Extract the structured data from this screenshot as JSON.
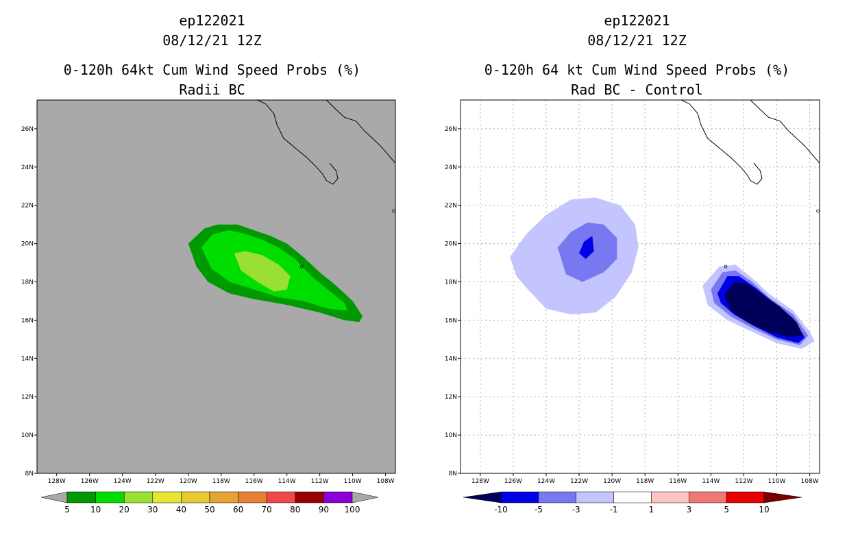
{
  "chart_data": [
    {
      "type": "contour-map",
      "storm_id": "ep122021",
      "datetime": "08/12/21 12Z",
      "title": "0-120h 64kt Cum Wind Speed Probs (%)",
      "subtitle": "Radii BC",
      "lon_ticks": [
        "128W",
        "126W",
        "124W",
        "122W",
        "120W",
        "118W",
        "116W",
        "114W",
        "112W",
        "110W",
        "108W"
      ],
      "lat_ticks": [
        "8N",
        "10N",
        "12N",
        "14N",
        "16N",
        "18N",
        "20N",
        "22N",
        "24N",
        "26N"
      ],
      "lon_range": [
        -129.2,
        -107.4
      ],
      "lat_range": [
        8,
        27.5
      ],
      "background": "#a9a9a9",
      "contours": [
        {
          "level": "5-10",
          "color": "#009900",
          "polygon": [
            [
              -120,
              20.0
            ],
            [
              -119,
              20.8
            ],
            [
              -118.2,
              21.0
            ],
            [
              -117,
              21.0
            ],
            [
              -116,
              20.7
            ],
            [
              -115,
              20.4
            ],
            [
              -114,
              20.0
            ],
            [
              -113,
              19.3
            ],
            [
              -112,
              18.5
            ],
            [
              -111,
              17.8
            ],
            [
              -110,
              17.0
            ],
            [
              -109.4,
              16.2
            ],
            [
              -109.6,
              15.9
            ],
            [
              -110.5,
              16.0
            ],
            [
              -112,
              16.4
            ],
            [
              -114,
              16.8
            ],
            [
              -116,
              17.1
            ],
            [
              -117.5,
              17.4
            ],
            [
              -118.8,
              18.0
            ],
            [
              -119.5,
              18.8
            ]
          ]
        },
        {
          "level": "10-20",
          "color": "#00dd00",
          "polygon": [
            [
              -119.2,
              19.8
            ],
            [
              -118.5,
              20.5
            ],
            [
              -117.5,
              20.7
            ],
            [
              -116.5,
              20.5
            ],
            [
              -115.5,
              20.2
            ],
            [
              -114.5,
              19.8
            ],
            [
              -113.5,
              19.2
            ],
            [
              -112.5,
              18.3
            ],
            [
              -111.5,
              17.6
            ],
            [
              -110.5,
              16.9
            ],
            [
              -110.3,
              16.5
            ],
            [
              -111.5,
              16.6
            ],
            [
              -113,
              17.0
            ],
            [
              -114.5,
              17.2
            ],
            [
              -116,
              17.6
            ],
            [
              -117.5,
              18.0
            ],
            [
              -118.6,
              18.7
            ]
          ]
        },
        {
          "level": "20-30",
          "color": "#99e033",
          "polygon": [
            [
              -117.2,
              19.5
            ],
            [
              -116.5,
              19.6
            ],
            [
              -115.5,
              19.4
            ],
            [
              -114.5,
              18.9
            ],
            [
              -113.8,
              18.3
            ],
            [
              -114.0,
              17.6
            ],
            [
              -114.8,
              17.5
            ],
            [
              -115.8,
              18.0
            ],
            [
              -116.8,
              18.6
            ]
          ]
        }
      ],
      "colorbar": {
        "labels": [
          "5",
          "10",
          "20",
          "30",
          "40",
          "50",
          "60",
          "70",
          "80",
          "90",
          "100"
        ],
        "colors": [
          "#009900",
          "#00dd00",
          "#99e033",
          "#e6e633",
          "#e6c933",
          "#e6a333",
          "#e68033",
          "#f04848",
          "#990000",
          "#8a00d6"
        ],
        "arrow_color": "#a9a9a9"
      }
    },
    {
      "type": "contour-map",
      "storm_id": "ep122021",
      "datetime": "08/12/21 12Z",
      "title": "0-120h 64 kt Cum Wind Speed Probs (%)",
      "subtitle": "Rad BC - Control",
      "lon_ticks": [
        "128W",
        "126W",
        "124W",
        "122W",
        "120W",
        "118W",
        "116W",
        "114W",
        "112W",
        "110W",
        "108W"
      ],
      "lat_ticks": [
        "8N",
        "10N",
        "12N",
        "14N",
        "16N",
        "18N",
        "20N",
        "22N",
        "24N",
        "26N"
      ],
      "lon_range": [
        -129.2,
        -107.4
      ],
      "lat_range": [
        8,
        27.5
      ],
      "background": "#ffffff",
      "grid": true,
      "contours": [
        {
          "level": "-3 to -1",
          "color": "#c4c4ff",
          "polygon": [
            [
              -126.2,
              19.3
            ],
            [
              -125.2,
              20.5
            ],
            [
              -124,
              21.5
            ],
            [
              -122.5,
              22.3
            ],
            [
              -121,
              22.4
            ],
            [
              -119.5,
              22.0
            ],
            [
              -118.6,
              21.0
            ],
            [
              -118.4,
              19.8
            ],
            [
              -118.8,
              18.5
            ],
            [
              -119.8,
              17.2
            ],
            [
              -121,
              16.4
            ],
            [
              -122.5,
              16.3
            ],
            [
              -124,
              16.6
            ],
            [
              -125,
              17.5
            ],
            [
              -125.8,
              18.3
            ]
          ]
        },
        {
          "level": "-5 to -3",
          "color": "#7878f0",
          "polygon": [
            [
              -123.3,
              19.8
            ],
            [
              -122.5,
              20.6
            ],
            [
              -121.5,
              21.1
            ],
            [
              -120.5,
              21.0
            ],
            [
              -119.7,
              20.3
            ],
            [
              -119.7,
              19.2
            ],
            [
              -120.5,
              18.5
            ],
            [
              -121.8,
              18.0
            ],
            [
              -122.8,
              18.4
            ]
          ]
        },
        {
          "level": "-10 to -5",
          "color": "#0000e6",
          "polygon": [
            [
              -122.0,
              19.5
            ],
            [
              -121.7,
              20.1
            ],
            [
              -121.2,
              20.4
            ],
            [
              -121.1,
              19.6
            ],
            [
              -121.6,
              19.2
            ]
          ]
        },
        {
          "level": "-3 to -1 (b)",
          "color": "#c4c4ff",
          "polygon": [
            [
              -114.5,
              17.8
            ],
            [
              -113.5,
              18.8
            ],
            [
              -112.5,
              18.9
            ],
            [
              -111.5,
              18.2
            ],
            [
              -110.5,
              17.4
            ],
            [
              -109,
              16.5
            ],
            [
              -108,
              15.4
            ],
            [
              -107.7,
              14.9
            ],
            [
              -108.5,
              14.5
            ],
            [
              -110,
              14.8
            ],
            [
              -111.5,
              15.4
            ],
            [
              -113,
              16.0
            ],
            [
              -114.2,
              16.8
            ]
          ]
        },
        {
          "level": "-5 to -3 (b)",
          "color": "#7878f0",
          "polygon": [
            [
              -114,
              17.6
            ],
            [
              -113.3,
              18.5
            ],
            [
              -112.5,
              18.6
            ],
            [
              -111.5,
              18.0
            ],
            [
              -110.5,
              17.2
            ],
            [
              -109,
              16.3
            ],
            [
              -108.1,
              15.2
            ],
            [
              -108.6,
              14.7
            ],
            [
              -110,
              15.0
            ],
            [
              -111.5,
              15.6
            ],
            [
              -112.8,
              16.2
            ],
            [
              -113.8,
              16.9
            ]
          ]
        },
        {
          "level": "-10 to -5 (b)",
          "color": "#0000e6",
          "polygon": [
            [
              -113.6,
              17.4
            ],
            [
              -113.0,
              18.3
            ],
            [
              -112.3,
              18.3
            ],
            [
              -111.3,
              17.7
            ],
            [
              -110.3,
              17.0
            ],
            [
              -109,
              16.1
            ],
            [
              -108.3,
              15.1
            ],
            [
              -108.7,
              14.8
            ],
            [
              -110,
              15.1
            ],
            [
              -111.4,
              15.7
            ],
            [
              -112.6,
              16.3
            ],
            [
              -113.4,
              16.9
            ]
          ]
        },
        {
          "level": "<-10",
          "color": "#00005a",
          "polygon": [
            [
              -113.2,
              17.3
            ],
            [
              -112.6,
              18.0
            ],
            [
              -111.8,
              17.9
            ],
            [
              -110.8,
              17.3
            ],
            [
              -109.8,
              16.7
            ],
            [
              -108.8,
              15.9
            ],
            [
              -108.4,
              15.2
            ],
            [
              -109.2,
              15.1
            ],
            [
              -110.5,
              15.4
            ],
            [
              -111.8,
              15.9
            ],
            [
              -112.8,
              16.5
            ]
          ]
        }
      ],
      "colorbar": {
        "labels": [
          "-10",
          "-5",
          "-3",
          "-1",
          "1",
          "3",
          "5",
          "10"
        ],
        "colors": [
          "#0000e6",
          "#7878f0",
          "#c4c4ff",
          "#ffffff",
          "#ffc4c4",
          "#f07878",
          "#e60000"
        ],
        "arrow_left_color": "#00005a",
        "arrow_right_color": "#7a0000"
      }
    }
  ]
}
